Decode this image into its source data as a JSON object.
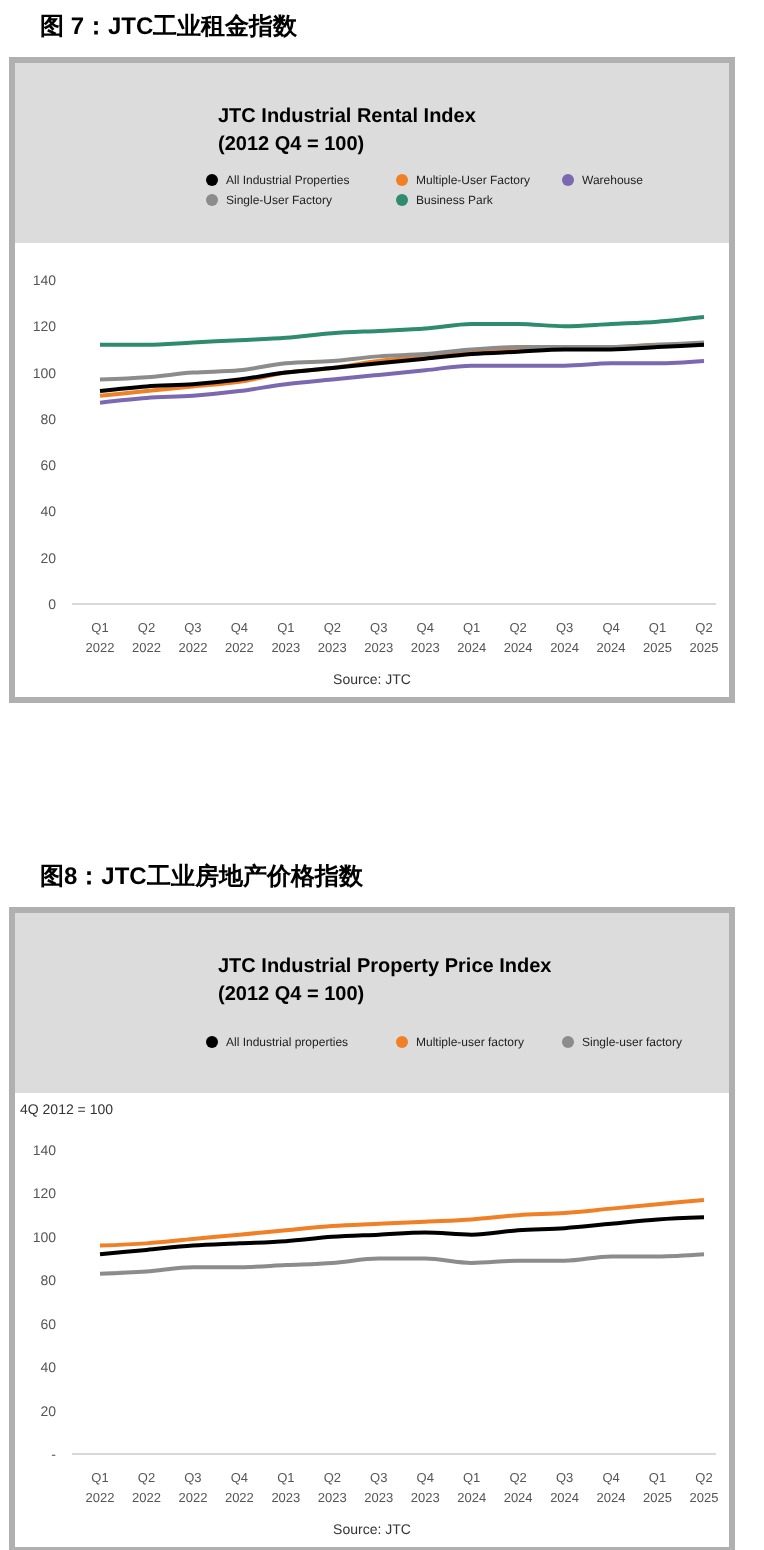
{
  "chart_data": [
    {
      "type": "line",
      "title": "图 7：JTC工业租金指数",
      "subtitle": "JTC Industrial Rental Index\n(2012 Q4 = 100)",
      "annotations": [
        "Source: JTC"
      ],
      "legend": "top",
      "categories": [
        "Q1\n2022",
        "Q2\n2022",
        "Q3\n2022",
        "Q4\n2022",
        "Q1\n2023",
        "Q2\n2023",
        "Q3\n2023",
        "Q4\n2023",
        "Q1\n2024",
        "Q2\n2024",
        "Q3\n2024",
        "Q4\n2024",
        "Q1\n2025",
        "Q2\n2025"
      ],
      "ylim": [
        0,
        140
      ],
      "yticks": [
        0,
        20,
        40,
        60,
        80,
        100,
        120,
        140
      ],
      "series": [
        {
          "name": "All Industrial Properties",
          "color": "#000000",
          "values": [
            92,
            94,
            95,
            97,
            100,
            102,
            104,
            106,
            108,
            109,
            110,
            110,
            111,
            112
          ]
        },
        {
          "name": "Single-User Factory",
          "color": "#8c8c8c",
          "values": [
            97,
            98,
            100,
            101,
            104,
            105,
            107,
            108,
            110,
            111,
            111,
            111,
            112,
            113
          ]
        },
        {
          "name": "Multiple-User Factory",
          "color": "#f07f25",
          "values": [
            90,
            92,
            94,
            96,
            100,
            102,
            105,
            107,
            109,
            110,
            111,
            111,
            112,
            112
          ]
        },
        {
          "name": "Business Park",
          "color": "#2e8b6e",
          "values": [
            112,
            112,
            113,
            114,
            115,
            117,
            118,
            119,
            121,
            121,
            120,
            121,
            122,
            124
          ]
        },
        {
          "name": "Warehouse",
          "color": "#7b68b0",
          "values": [
            87,
            89,
            90,
            92,
            95,
            97,
            99,
            101,
            103,
            103,
            103,
            104,
            104,
            105
          ]
        }
      ]
    },
    {
      "type": "line",
      "title": "图8：JTC工业房地产价格指数",
      "subtitle": "JTC Industrial Property Price Index\n(2012 Q4 = 100)",
      "ylabel": "4Q 2012 = 100",
      "annotations": [
        "Source: JTC"
      ],
      "legend": "top",
      "categories": [
        "Q1\n2022",
        "Q2\n2022",
        "Q3\n2022",
        "Q4\n2022",
        "Q1\n2023",
        "Q2\n2023",
        "Q3\n2023",
        "Q4\n2023",
        "Q1\n2024",
        "Q2\n2024",
        "Q3\n2024",
        "Q4\n2024",
        "Q1\n2025",
        "Q2\n2025"
      ],
      "ylim": [
        0,
        140
      ],
      "yticks": [
        {
          "value": 0,
          "label": "-"
        },
        20,
        40,
        60,
        80,
        100,
        120,
        140
      ],
      "series": [
        {
          "name": "All Industrial properties",
          "color": "#000000",
          "values": [
            92,
            94,
            96,
            97,
            98,
            100,
            101,
            102,
            101,
            103,
            104,
            106,
            108,
            109
          ]
        },
        {
          "name": "Multiple-user factory",
          "color": "#f07f25",
          "values": [
            96,
            97,
            99,
            101,
            103,
            105,
            106,
            107,
            108,
            110,
            111,
            113,
            115,
            117
          ]
        },
        {
          "name": "Single-user factory",
          "color": "#8c8c8c",
          "values": [
            83,
            84,
            86,
            86,
            87,
            88,
            90,
            90,
            88,
            89,
            89,
            91,
            91,
            92
          ]
        }
      ]
    }
  ]
}
